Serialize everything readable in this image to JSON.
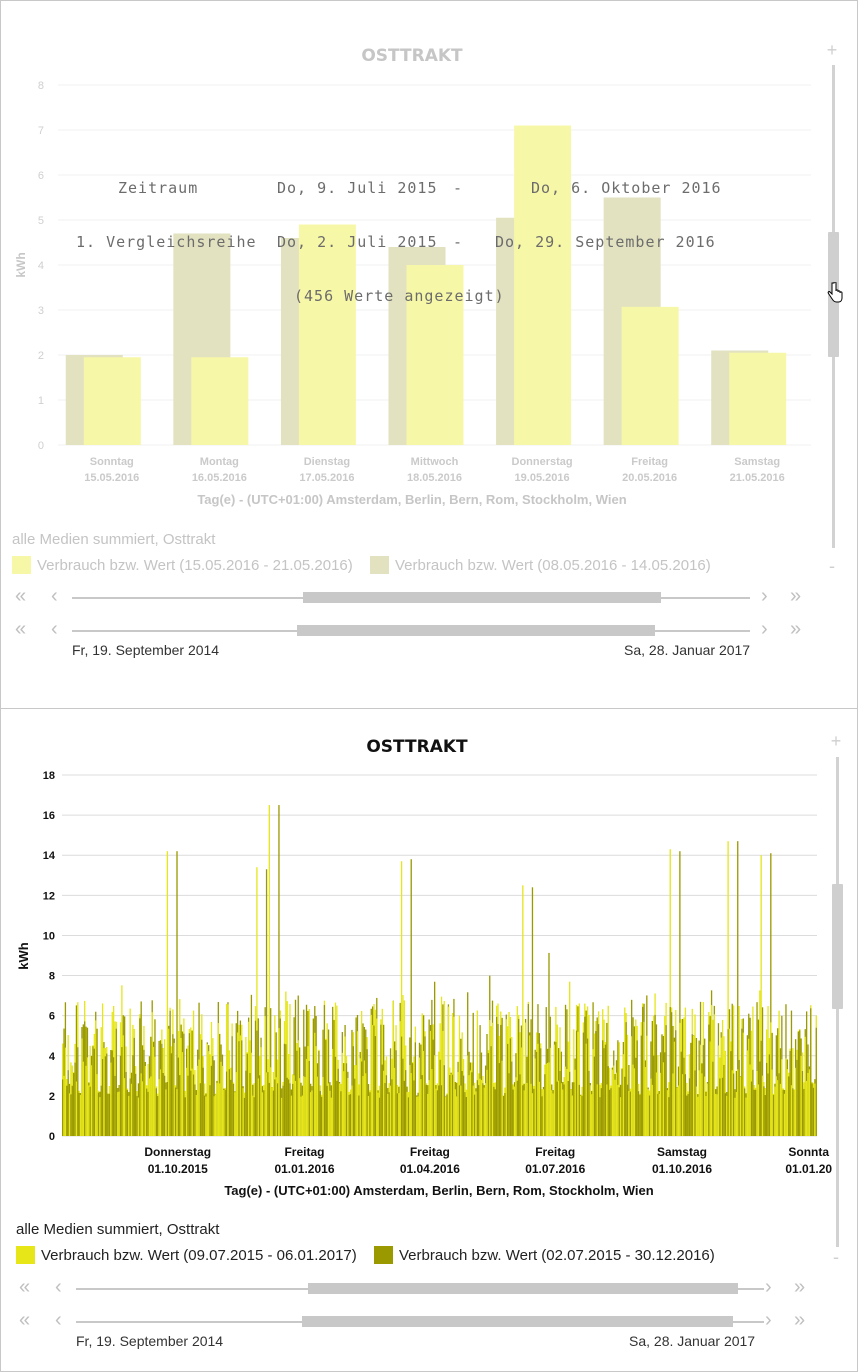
{
  "panel1": {
    "zoom_in": "+",
    "zoom_out": "-",
    "legend_title": "alle Medien summiert, Osttrakt",
    "legend": [
      {
        "label": "Verbrauch bzw. Wert (15.05.2016 - 21.05.2016)",
        "color": "#f7f7a8"
      },
      {
        "label": "Verbrauch bzw. Wert (08.05.2016 - 14.05.2016)",
        "color": "#e2e2c0"
      }
    ],
    "range_start": "Fr, 19. September 2014",
    "range_end": "Sa, 28. Januar 2017",
    "overlay": {
      "row1_label": "Zeitraum",
      "row1_from": "Do, 9. Juli 2015",
      "row1_dash": "-",
      "row1_to": "Do, 6. Oktober 2016",
      "row2_label": "1. Vergleichsreihe",
      "row2_from": "Do, 2. Juli 2015",
      "row2_dash": "-",
      "row2_to": "Do, 29. September 2016",
      "count": "(456 Werte angezeigt)"
    }
  },
  "panel2": {
    "zoom_in": "+",
    "zoom_out": "-",
    "legend_title": "alle Medien summiert, Osttrakt",
    "legend": [
      {
        "label": "Verbrauch bzw. Wert (09.07.2015 - 06.01.2017)",
        "color": "#e6e619"
      },
      {
        "label": "Verbrauch bzw. Wert (02.07.2015 - 30.12.2016)",
        "color": "#9a9a00"
      }
    ],
    "range_start": "Fr, 19. September 2014",
    "range_end": "Sa, 28. Januar 2017"
  },
  "nav_icons": {
    "first": "«",
    "prev": "‹",
    "next": "›",
    "last": "»"
  },
  "chart_data": [
    {
      "type": "bar",
      "title": "OSTTRAKT",
      "xlabel": "Tag(e) - (UTC+01:00) Amsterdam, Berlin, Bern, Rom, Stockholm, Wien",
      "ylabel": "kWh",
      "ylim": [
        0,
        8
      ],
      "yticks": [
        0,
        1,
        2,
        3,
        4,
        5,
        6,
        7,
        8
      ],
      "categories": [
        [
          "Sonntag",
          "15.05.2016"
        ],
        [
          "Montag",
          "16.05.2016"
        ],
        [
          "Dienstag",
          "17.05.2016"
        ],
        [
          "Mittwoch",
          "18.05.2016"
        ],
        [
          "Donnerstag",
          "19.05.2016"
        ],
        [
          "Freitag",
          "20.05.2016"
        ],
        [
          "Samstag",
          "21.05.2016"
        ]
      ],
      "series": [
        {
          "name": "Verbrauch bzw. Wert (08.05.2016 - 14.05.2016)",
          "color": "#e2e2c0",
          "values": [
            2.0,
            4.7,
            4.6,
            4.4,
            5.05,
            5.5,
            2.1
          ]
        },
        {
          "name": "Verbrauch bzw. Wert (15.05.2016 - 21.05.2016)",
          "color": "#f7f7a8",
          "values": [
            1.95,
            1.95,
            4.9,
            4.0,
            7.1,
            3.07,
            2.05
          ]
        }
      ],
      "grid": true,
      "faded": true
    },
    {
      "type": "bar",
      "title": "OSTTRAKT",
      "xlabel": "Tag(e) - (UTC+01:00) Amsterdam, Berlin, Bern, Rom, Stockholm, Wien",
      "ylabel": "kWh",
      "ylim": [
        0,
        18
      ],
      "yticks": [
        0,
        2,
        4,
        6,
        8,
        10,
        12,
        14,
        16,
        18
      ],
      "xticks": [
        {
          "day": "Donnerstag",
          "date": "01.10.2015",
          "index": 84
        },
        {
          "day": "Freitag",
          "date": "01.01.2016",
          "index": 176
        },
        {
          "day": "Freitag",
          "date": "01.04.2016",
          "index": 267
        },
        {
          "day": "Freitag",
          "date": "01.07.2016",
          "index": 358
        },
        {
          "day": "Samstag",
          "date": "01.10.2016",
          "index": 450
        },
        {
          "day": "Sonnta",
          "date": "01.01.20",
          "index": 542
        }
      ],
      "n_points": 548,
      "grid": true,
      "series": [
        {
          "name": "Verbrauch bzw. Wert (09.07.2015 - 06.01.2017)",
          "color": "#e6e619",
          "peaks": [
            {
              "i": 76,
              "v": 14.2
            },
            {
              "i": 141,
              "v": 13.4
            },
            {
              "i": 150,
              "v": 16.5
            },
            {
              "i": 246,
              "v": 13.7
            },
            {
              "i": 334,
              "v": 12.5
            },
            {
              "i": 441,
              "v": 14.3
            },
            {
              "i": 483,
              "v": 14.7
            },
            {
              "i": 507,
              "v": 14.0
            }
          ],
          "typical_range": [
            2.0,
            7.0
          ]
        },
        {
          "name": "Verbrauch bzw. Wert (02.07.2015 - 30.12.2016)",
          "color": "#9a9a00",
          "peaks": [
            {
              "i": 83,
              "v": 14.2
            },
            {
              "i": 148,
              "v": 13.3
            },
            {
              "i": 157,
              "v": 16.5
            },
            {
              "i": 253,
              "v": 13.8
            },
            {
              "i": 341,
              "v": 12.4
            },
            {
              "i": 448,
              "v": 14.2
            },
            {
              "i": 490,
              "v": 14.7
            },
            {
              "i": 514,
              "v": 14.1
            }
          ],
          "typical_range": [
            2.0,
            7.0
          ]
        }
      ]
    }
  ]
}
